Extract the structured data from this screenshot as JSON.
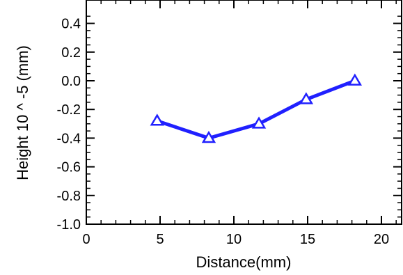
{
  "chart_data": {
    "type": "line",
    "xlabel": "Distance(mm)",
    "ylabel": "Height 10 ^ -5 (mm)",
    "xlim": [
      0,
      21
    ],
    "ylim": [
      -1.0,
      0.45
    ],
    "xticks": [
      0,
      5,
      10,
      15,
      20
    ],
    "xtick_labels": [
      "0",
      "5",
      "10",
      "15",
      "20"
    ],
    "yticks": [
      0.4,
      0.2,
      0.0,
      -0.2,
      -0.4,
      -0.6,
      -0.8,
      -1.0
    ],
    "ytick_labels": [
      "0.4",
      "0.2",
      "0.0",
      "-0.2",
      "-0.4",
      "-0.6",
      "-0.8",
      "-1.0"
    ],
    "grid": false,
    "series": [
      {
        "x": [
          4.8,
          8.3,
          11.7,
          14.9,
          18.2
        ],
        "y": [
          -0.28,
          -0.4,
          -0.3,
          -0.13,
          0.0
        ],
        "color": "#2020ff",
        "marker": "triangle"
      }
    ]
  }
}
